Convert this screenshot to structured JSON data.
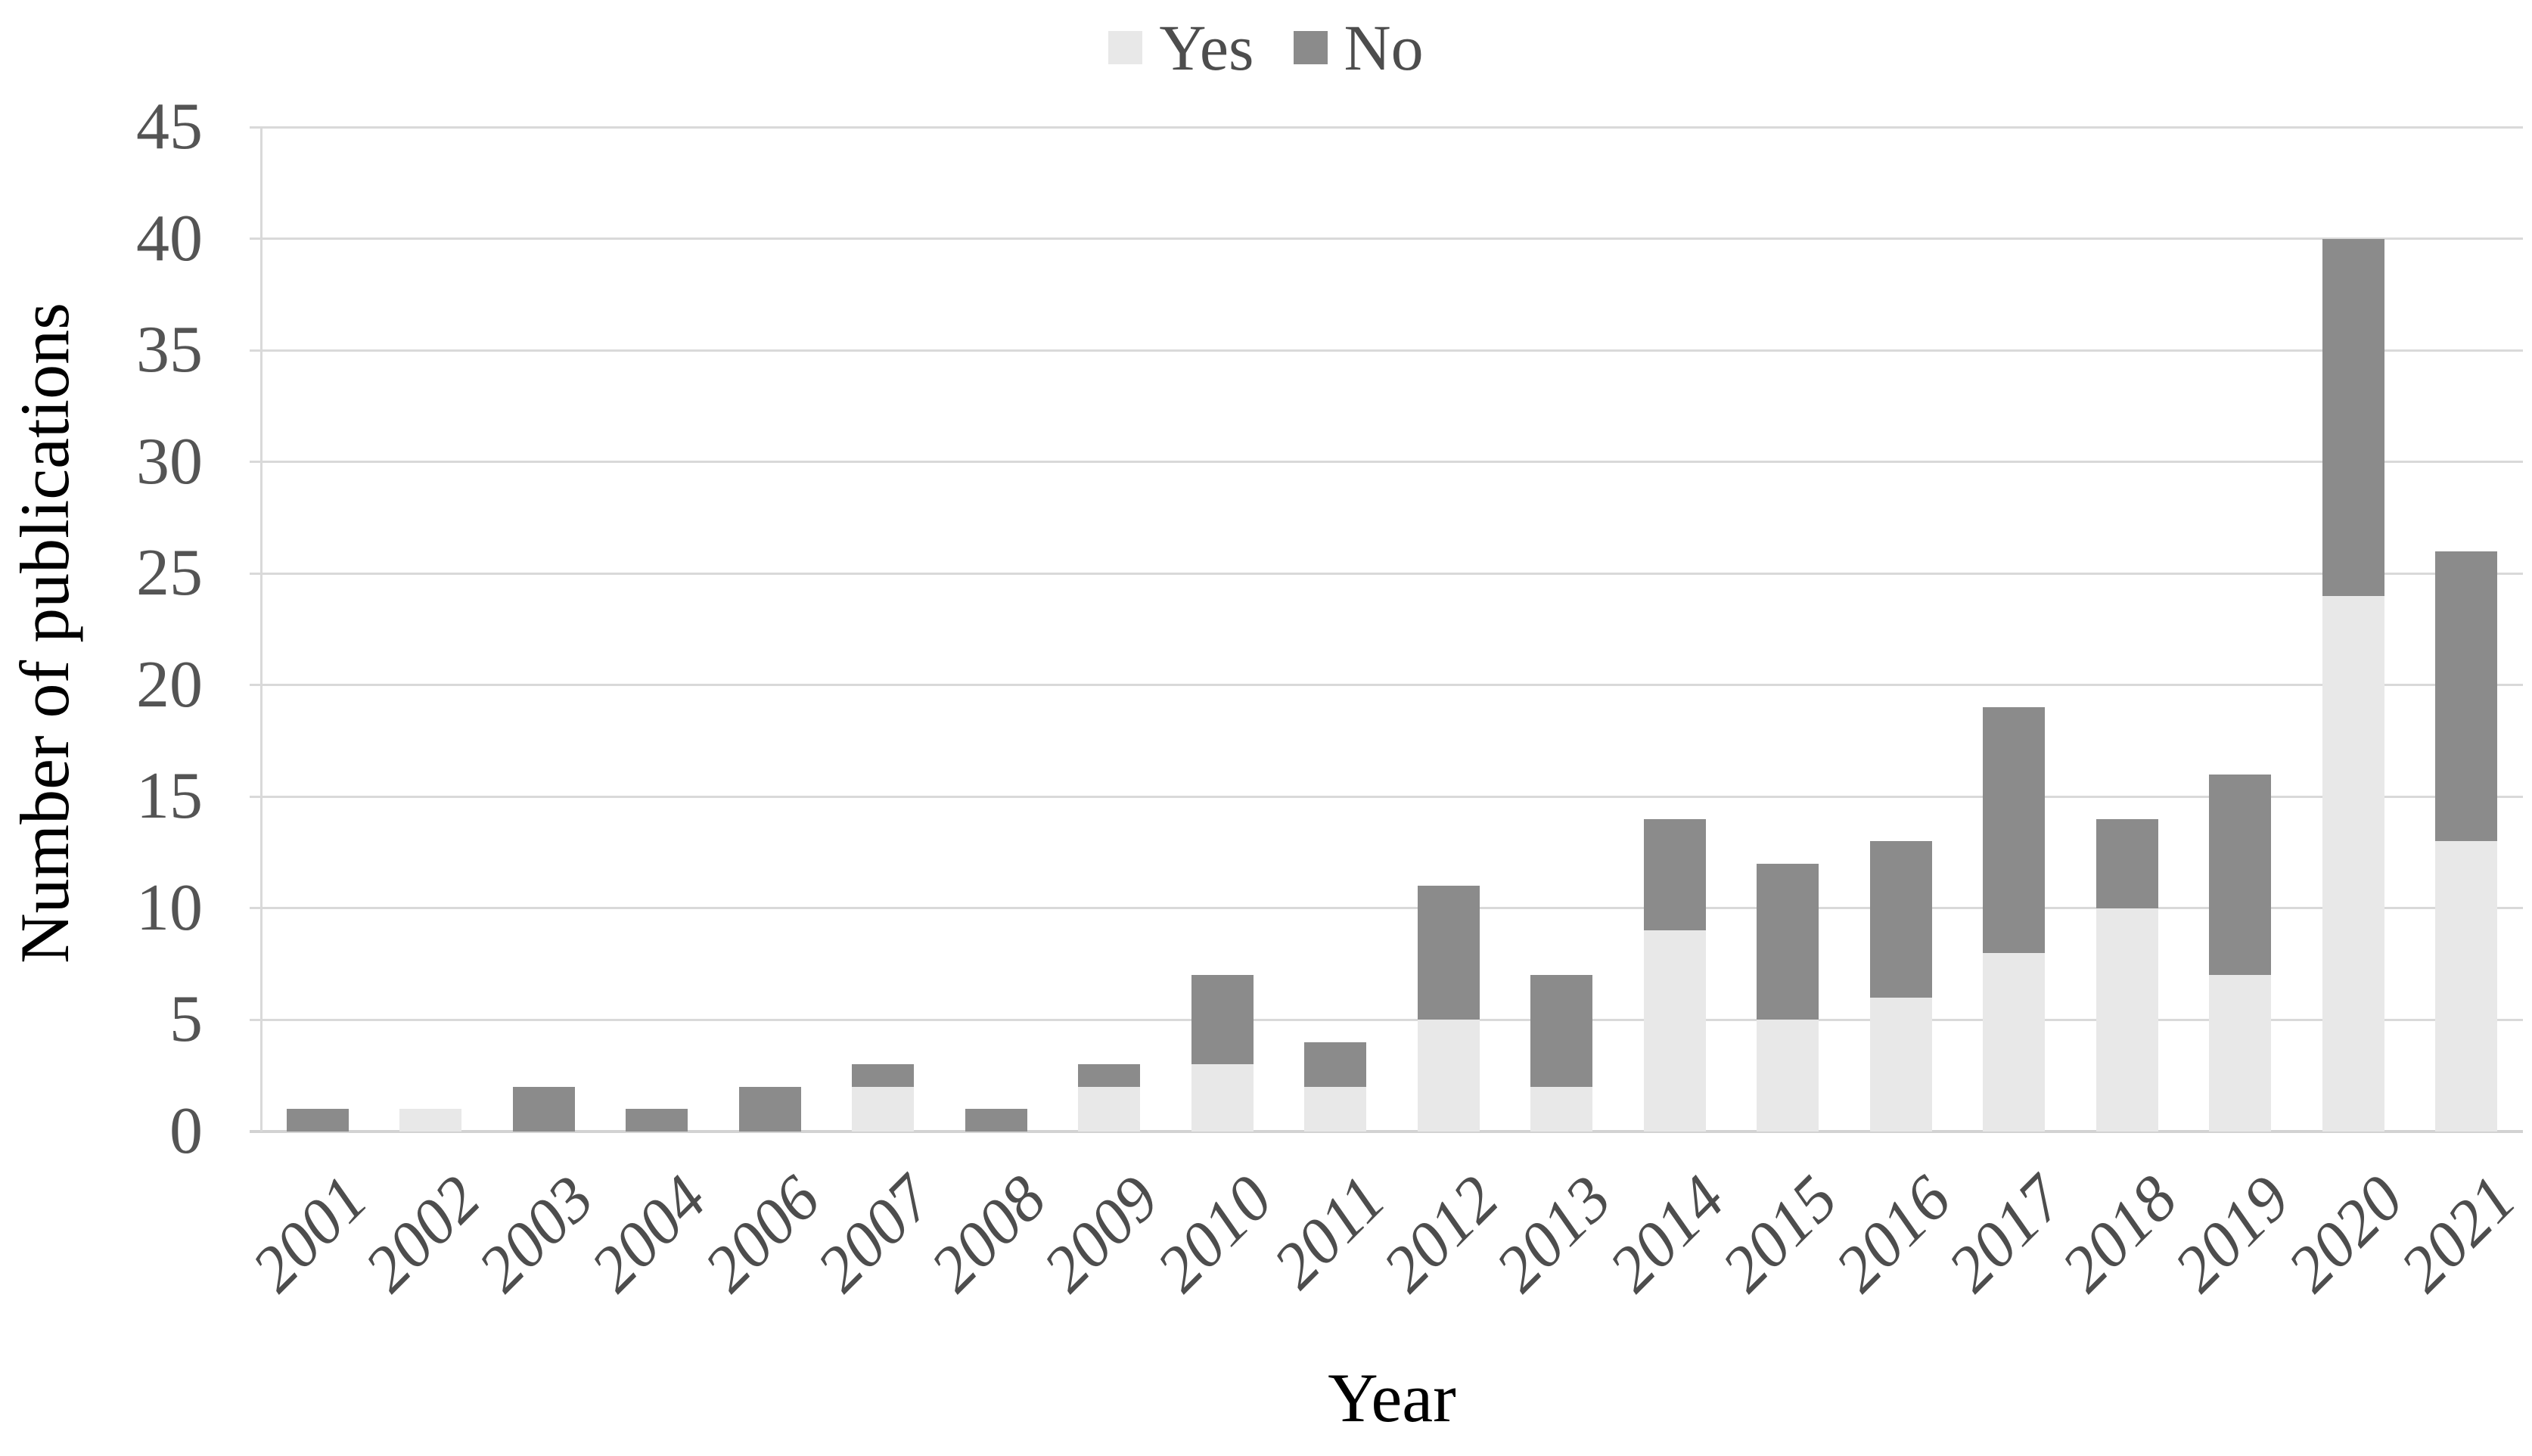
{
  "legend": {
    "position": "top-center",
    "items": [
      {
        "label": "Yes",
        "swatch_color": "#e8e8e8"
      },
      {
        "label": "No",
        "swatch_color": "#8b8b8b"
      }
    ]
  },
  "chart_data": {
    "type": "bar",
    "stacked": true,
    "title": "",
    "xlabel": "Year",
    "ylabel": "Number of publications",
    "categories": [
      "2001",
      "2002",
      "2003",
      "2004",
      "2006",
      "2007",
      "2008",
      "2009",
      "2010",
      "2011",
      "2012",
      "2013",
      "2014",
      "2015",
      "2016",
      "2017",
      "2018",
      "2019",
      "2020",
      "2021"
    ],
    "series": [
      {
        "name": "Yes",
        "color": "#e8e8e8",
        "values": [
          0,
          1,
          0,
          0,
          0,
          2,
          0,
          2,
          3,
          2,
          5,
          2,
          9,
          5,
          6,
          8,
          10,
          7,
          24,
          13
        ]
      },
      {
        "name": "No",
        "color": "#8b8b8b",
        "values": [
          1,
          0,
          2,
          1,
          2,
          1,
          1,
          1,
          4,
          2,
          6,
          5,
          5,
          7,
          7,
          11,
          4,
          9,
          16,
          13
        ]
      }
    ],
    "totals": [
      1,
      1,
      2,
      1,
      2,
      3,
      1,
      3,
      7,
      4,
      11,
      7,
      14,
      12,
      13,
      19,
      14,
      16,
      40,
      26
    ],
    "y_ticks": [
      0,
      5,
      10,
      15,
      20,
      25,
      30,
      35,
      40,
      45
    ],
    "ylim": [
      0,
      45
    ],
    "grid": true,
    "gridline_color": "#d9d9d9",
    "tick_label_color": "#545454",
    "axis_title_color": "#000000",
    "legend_position": "top"
  }
}
